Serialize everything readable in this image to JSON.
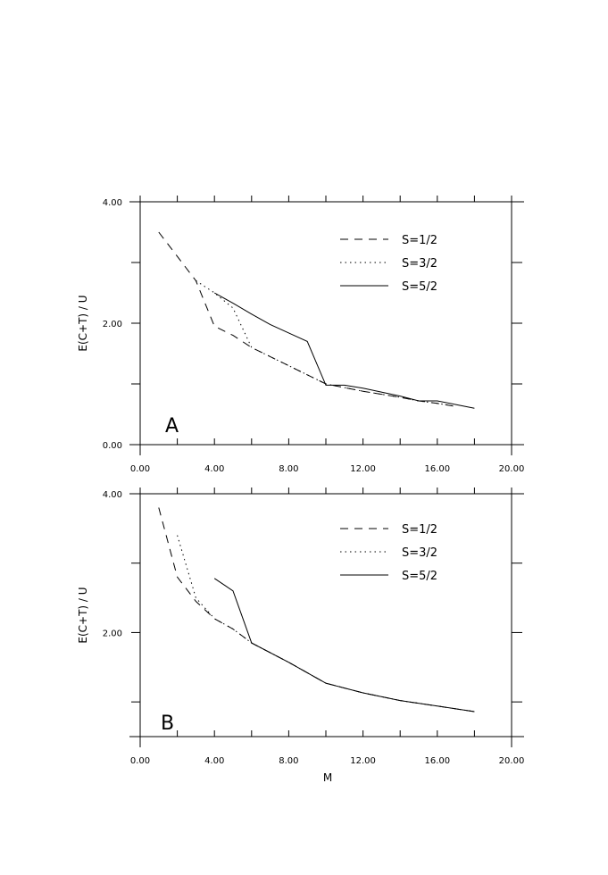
{
  "chart_data": [
    {
      "type": "line",
      "panel_label": "A",
      "xlabel": "",
      "ylabel": "E(C+T) / U",
      "xlim": [
        0,
        20
      ],
      "ylim": [
        0,
        4
      ],
      "xticks": [
        "0.00",
        "4.00",
        "8.00",
        "12.00",
        "16.00",
        "20.00"
      ],
      "yticks": [
        "0.00",
        "2.00",
        "4.00"
      ],
      "legend_position": "top-right",
      "grid": false,
      "series": [
        {
          "name": "S=1/2",
          "style": "dashed",
          "x": [
            1,
            2,
            3,
            4,
            5,
            6,
            7,
            8,
            9,
            10,
            12,
            14,
            15,
            16,
            17
          ],
          "y": [
            3.5,
            3.1,
            2.7,
            1.95,
            1.8,
            1.6,
            1.45,
            1.3,
            1.15,
            1.0,
            0.88,
            0.78,
            0.72,
            0.68,
            0.63
          ]
        },
        {
          "name": "S=3/2",
          "style": "dotted",
          "x": [
            3,
            4,
            5,
            6,
            7,
            8,
            9,
            10,
            12,
            14,
            15,
            16,
            17
          ],
          "y": [
            2.7,
            2.5,
            2.25,
            1.6,
            1.45,
            1.3,
            1.15,
            1.0,
            0.88,
            0.78,
            0.72,
            0.68,
            0.63
          ]
        },
        {
          "name": "S=5/2",
          "style": "solid",
          "x": [
            4,
            5,
            6,
            7,
            8,
            9,
            10,
            11,
            12,
            14,
            15,
            16,
            17,
            18
          ],
          "y": [
            2.5,
            2.33,
            2.15,
            1.98,
            1.84,
            1.7,
            0.98,
            0.98,
            0.93,
            0.8,
            0.72,
            0.72,
            0.66,
            0.6
          ]
        }
      ]
    },
    {
      "type": "line",
      "panel_label": "B",
      "xlabel": "M",
      "ylabel": "E(C+T) / U",
      "xlim": [
        0,
        20
      ],
      "ylim": [
        0.5,
        4
      ],
      "xticks": [
        "0.00",
        "4.00",
        "8.00",
        "12.00",
        "16.00",
        "20.00"
      ],
      "yticks": [
        "2.00",
        "4.00"
      ],
      "legend_position": "top-right",
      "grid": false,
      "series": [
        {
          "name": "S=1/2",
          "style": "dashed",
          "x": [
            1,
            2,
            3,
            4,
            5,
            6,
            8,
            10,
            12,
            14,
            16,
            18
          ],
          "y": [
            3.8,
            2.8,
            2.45,
            2.2,
            2.05,
            1.85,
            1.57,
            1.27,
            1.13,
            1.02,
            0.94,
            0.86
          ]
        },
        {
          "name": "S=3/2",
          "style": "dotted",
          "x": [
            2,
            3,
            4,
            5,
            6,
            8,
            10,
            12,
            14,
            16,
            18
          ],
          "y": [
            3.4,
            2.5,
            2.2,
            2.05,
            1.85,
            1.57,
            1.27,
            1.13,
            1.02,
            0.94,
            0.86
          ]
        },
        {
          "name": "S=5/2",
          "style": "solid",
          "x": [
            4,
            5,
            6,
            8,
            10,
            12,
            14,
            16,
            18
          ],
          "y": [
            2.78,
            2.6,
            1.85,
            1.57,
            1.27,
            1.13,
            1.02,
            0.94,
            0.86
          ]
        }
      ]
    }
  ]
}
